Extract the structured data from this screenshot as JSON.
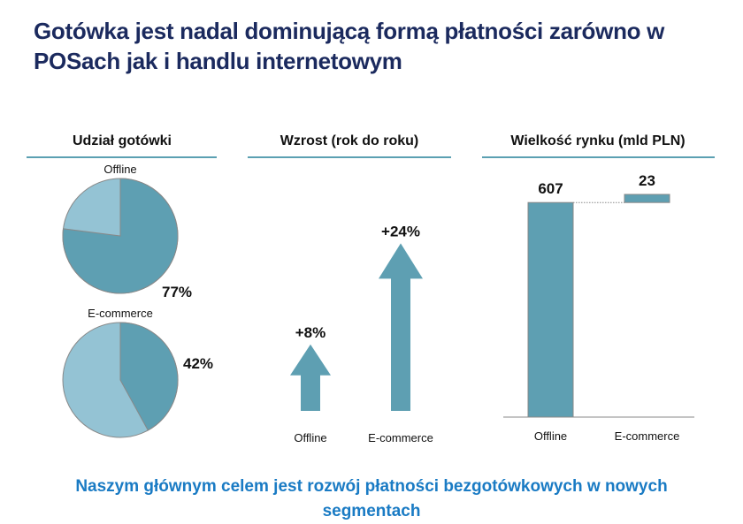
{
  "title": "Gotówka jest nadal dominującą formą płatności zarówno w POSach jak i handlu internetowym",
  "footer": "Naszym głównym celem jest rozwój płatności bezgotówkowych w nowych segmentach",
  "colors": {
    "dark": "#5e9fb2",
    "light": "#94c3d4",
    "rule": "#5ba0b2"
  },
  "chart_data": [
    {
      "type": "pie",
      "title": "Udział gotówki",
      "pies": [
        {
          "name": "Offline",
          "value": 77,
          "label": "77%"
        },
        {
          "name": "E-commerce",
          "value": 42,
          "label": "42%"
        }
      ]
    },
    {
      "type": "bar",
      "title": "Wzrost (rok do roku)",
      "categories": [
        "Offline",
        "E-commerce"
      ],
      "values": [
        8,
        24
      ],
      "labels": [
        "+8%",
        "+24%"
      ]
    },
    {
      "type": "bar",
      "subtype": "waterfall",
      "title": "Wielkość rynku (mld PLN)",
      "categories": [
        "Offline",
        "E-commerce"
      ],
      "values": [
        607,
        23
      ],
      "labels": [
        "607",
        "23"
      ]
    }
  ]
}
